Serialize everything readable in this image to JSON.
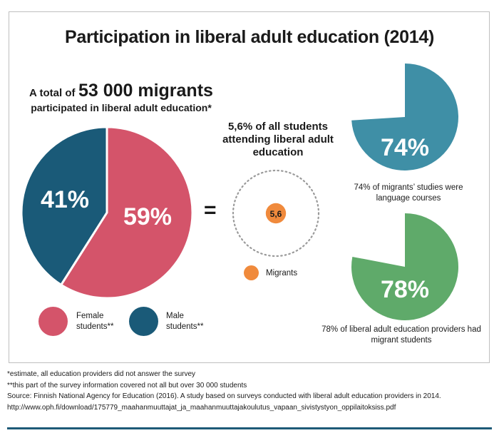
{
  "title": "Participation in liberal adult education (2014)",
  "headline": {
    "prefix": "A total of",
    "big": "53 000 migrants",
    "line2": "participated in liberal adult education*"
  },
  "share_text": "5,6% of all students attending liberal adult education",
  "equals": "=",
  "caption_language": "74% of migrants’ studies were language courses",
  "caption_providers": "78% of liberal adult education providers had migrant students",
  "legend": {
    "female": "Female students**",
    "male": "Male students**",
    "migrants": "Migrants"
  },
  "footnotes": {
    "note1": "*estimate, all education providers did not answer the survey",
    "note2": "**this part of the survey information covered not all but over 30 000 students",
    "source": "Source: Finnish National Agency for Education (2016). A study based on surveys conducted with liberal adult education providers in 2014.",
    "url": "http://www.oph.fi/download/175779_maahanmuuttajat_ja_maahanmuuttajakoulutus_vapaan_sivistystyon_oppilaitoksiss.pdf"
  },
  "colors": {
    "female": "#d4546a",
    "male": "#1a5a78",
    "language": "#3f8fa6",
    "providers": "#5faa6a",
    "migrants": "#f08a3c"
  },
  "chart_data": [
    {
      "type": "pie",
      "categories": [
        "Female students**",
        "Male students**"
      ],
      "values": [
        59,
        41
      ],
      "labels": [
        "59%",
        "41%"
      ]
    },
    {
      "type": "pie",
      "categories": [
        "Migrants"
      ],
      "values": [
        5.6
      ],
      "labels": [
        "5,6"
      ]
    },
    {
      "type": "pie",
      "values": [
        74
      ],
      "labels": [
        "74%"
      ]
    },
    {
      "type": "pie",
      "values": [
        78
      ],
      "labels": [
        "78%"
      ]
    }
  ]
}
